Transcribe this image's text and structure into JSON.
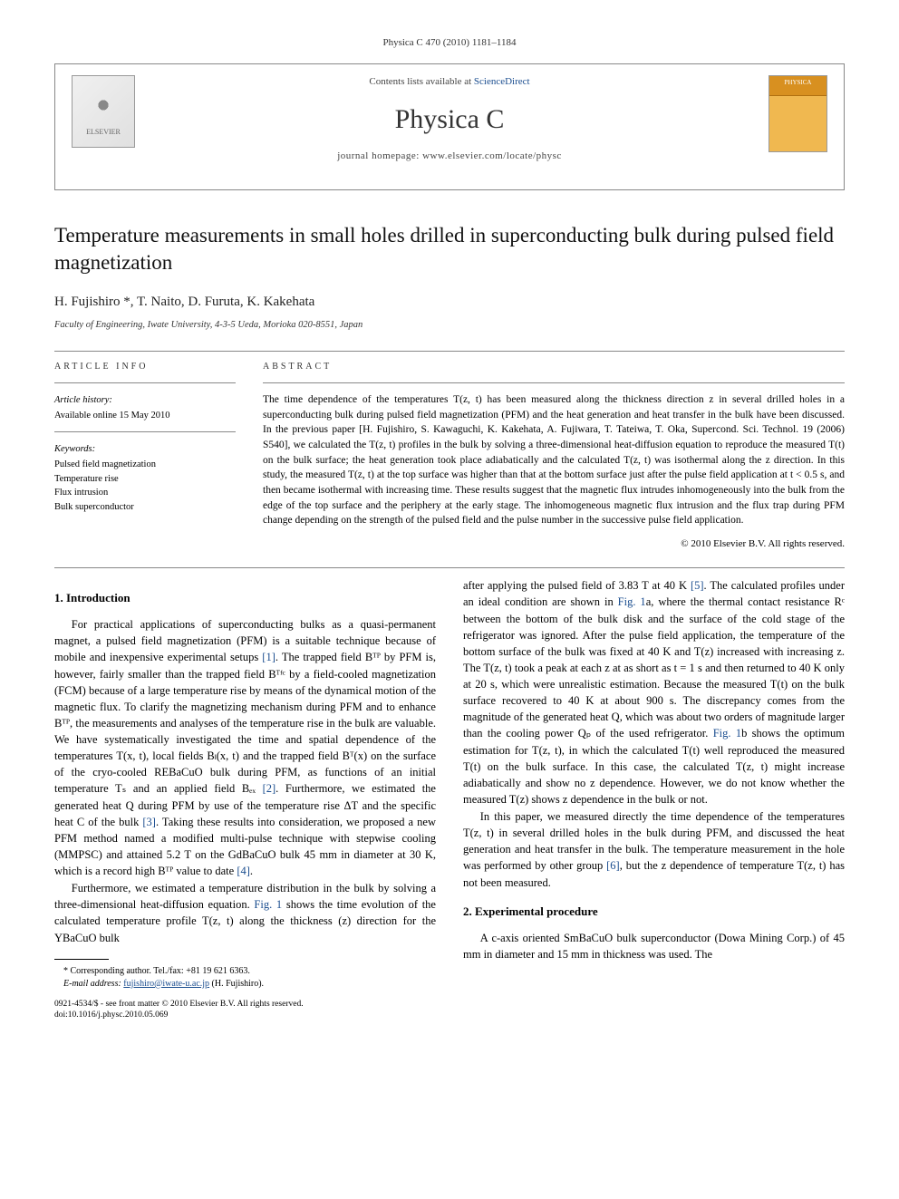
{
  "journal_ref": "Physica C 470 (2010) 1181–1184",
  "header": {
    "contents_prefix": "Contents lists available at ",
    "contents_link": "ScienceDirect",
    "journal_name": "Physica C",
    "homepage_prefix": "journal homepage: ",
    "homepage_url": "www.elsevier.com/locate/physc",
    "publisher": "ELSEVIER",
    "cover_label": "PHYSICA"
  },
  "title": "Temperature measurements in small holes drilled in superconducting bulk during pulsed field magnetization",
  "authors": "H. Fujishiro *, T. Naito, D. Furuta, K. Kakehata",
  "affiliation": "Faculty of Engineering, Iwate University, 4-3-5 Ueda, Morioka 020-8551, Japan",
  "article_info": {
    "label": "ARTICLE INFO",
    "history_head": "Article history:",
    "history_line": "Available online 15 May 2010",
    "keywords_head": "Keywords:",
    "keywords": [
      "Pulsed field magnetization",
      "Temperature rise",
      "Flux intrusion",
      "Bulk superconductor"
    ]
  },
  "abstract": {
    "label": "ABSTRACT",
    "text": "The time dependence of the temperatures T(z, t) has been measured along the thickness direction z in several drilled holes in a superconducting bulk during pulsed field magnetization (PFM) and the heat generation and heat transfer in the bulk have been discussed. In the previous paper [H. Fujishiro, S. Kawaguchi, K. Kakehata, A. Fujiwara, T. Tateiwa, T. Oka, Supercond. Sci. Technol. 19 (2006) S540], we calculated the T(z, t) profiles in the bulk by solving a three-dimensional heat-diffusion equation to reproduce the measured T(t) on the bulk surface; the heat generation took place adiabatically and the calculated T(z, t) was isothermal along the z direction. In this study, the measured T(z, t) at the top surface was higher than that at the bottom surface just after the pulse field application at t < 0.5 s, and then became isothermal with increasing time. These results suggest that the magnetic flux intrudes inhomogeneously into the bulk from the edge of the top surface and the periphery at the early stage. The inhomogeneous magnetic flux intrusion and the flux trap during PFM change depending on the strength of the pulsed field and the pulse number in the successive pulse field application.",
    "copyright": "© 2010 Elsevier B.V. All rights reserved."
  },
  "sections": {
    "intro_head": "1. Introduction",
    "intro_p1_a": "For practical applications of superconducting bulks as a quasi-permanent magnet, a pulsed field magnetization (PFM) is a suitable technique because of mobile and inexpensive experimental setups ",
    "intro_p1_ref1": "[1]",
    "intro_p1_b": ". The trapped field Bᵀᴾ by PFM is, however, fairly smaller than the trapped field Bᵀᶠᶜ by a field-cooled magnetization (FCM) because of a large temperature rise by means of the dynamical motion of the magnetic flux. To clarify the magnetizing mechanism during PFM and to enhance Bᵀᴾ, the measurements and analyses of the temperature rise in the bulk are valuable. We have systematically investigated the time and spatial dependence of the temperatures T(x, t), local fields Bₗ(x, t) and the trapped field Bᵀ(x) on the surface of the cryo-cooled REBaCuO bulk during PFM, as functions of an initial temperature Tₛ and an applied field Bₑₓ ",
    "intro_p1_ref2": "[2]",
    "intro_p1_c": ". Furthermore, we estimated the generated heat Q during PFM by use of the temperature rise ΔT and the specific heat C of the bulk ",
    "intro_p1_ref3": "[3]",
    "intro_p1_d": ". Taking these results into consideration, we proposed a new PFM method named a modified multi-pulse technique with stepwise cooling (MMPSC) and attained 5.2 T on the GdBaCuO bulk 45 mm in diameter at 30 K, which is a record high Bᵀᴾ value to date ",
    "intro_p1_ref4": "[4]",
    "intro_p1_e": ".",
    "intro_p2_a": "Furthermore, we estimated a temperature distribution in the bulk by solving a three-dimensional heat-diffusion equation. ",
    "intro_p2_fig1": "Fig. 1",
    "intro_p2_b": " shows the time evolution of the calculated temperature profile T(z, t) along the thickness (z) direction for the YBaCuO bulk",
    "intro_col2_a": "after applying the pulsed field of 3.83 T at 40 K ",
    "intro_col2_ref5": "[5]",
    "intro_col2_b": ". The calculated profiles under an ideal condition are shown in ",
    "intro_col2_fig1a": "Fig. 1",
    "intro_col2_c": "a, where the thermal contact resistance Rᶜ between the bottom of the bulk disk and the surface of the cold stage of the refrigerator was ignored. After the pulse field application, the temperature of the bottom surface of the bulk was fixed at 40 K and T(z) increased with increasing z. The T(z, t) took a peak at each z at as short as t = 1 s and then returned to 40 K only at 20 s, which were unrealistic estimation. Because the measured T(t) on the bulk surface recovered to 40 K at about 900 s. The discrepancy comes from the magnitude of the generated heat Q, which was about two orders of magnitude larger than the cooling power Qₚ of the used refrigerator. ",
    "intro_col2_fig1b": "Fig. 1",
    "intro_col2_d": "b shows the optimum estimation for T(z, t), in which the calculated T(t) well reproduced the measured T(t) on the bulk surface. In this case, the calculated T(z, t) might increase adiabatically and show no z dependence. However, we do not know whether the measured T(z) shows z dependence in the bulk or not.",
    "intro_p3_a": "In this paper, we measured directly the time dependence of the temperatures T(z, t) in several drilled holes in the bulk during PFM, and discussed the heat generation and heat transfer in the bulk. The temperature measurement in the hole was performed by other group ",
    "intro_p3_ref6": "[6]",
    "intro_p3_b": ", but the z dependence of temperature T(z, t) has not been measured.",
    "exp_head": "2. Experimental procedure",
    "exp_p1": "A c-axis oriented SmBaCuO bulk superconductor (Dowa Mining Corp.) of 45 mm in diameter and 15 mm in thickness was used. The"
  },
  "footnotes": {
    "corr": "* Corresponding author. Tel./fax: +81 19 621 6363.",
    "email_label": "E-mail address: ",
    "email": "fujishiro@iwate-u.ac.jp",
    "email_suffix": " (H. Fujishiro)."
  },
  "doi": {
    "line1": "0921-4534/$ - see front matter © 2010 Elsevier B.V. All rights reserved.",
    "line2": "doi:10.1016/j.physc.2010.05.069"
  }
}
